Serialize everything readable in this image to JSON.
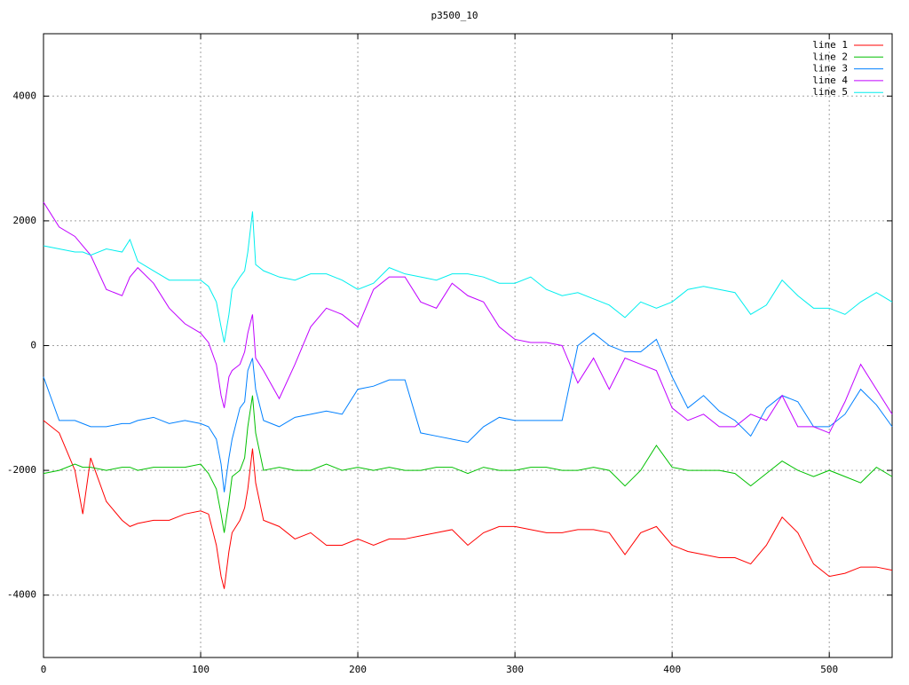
{
  "chart_data": {
    "type": "line",
    "title": "p3500_10",
    "x": [
      0,
      10,
      20,
      25,
      30,
      40,
      50,
      55,
      60,
      70,
      80,
      90,
      100,
      105,
      110,
      113,
      115,
      118,
      120,
      125,
      128,
      130,
      133,
      135,
      140,
      150,
      160,
      170,
      180,
      190,
      200,
      210,
      220,
      230,
      240,
      250,
      260,
      270,
      280,
      290,
      300,
      310,
      320,
      330,
      340,
      350,
      360,
      370,
      380,
      390,
      400,
      410,
      420,
      430,
      440,
      450,
      460,
      470,
      480,
      490,
      500,
      510,
      520,
      530,
      540
    ],
    "series": [
      {
        "name": "line 1",
        "color": "#ff0000",
        "values": [
          -1200,
          -1400,
          -2000,
          -2700,
          -1800,
          -2500,
          -2800,
          -2900,
          -2850,
          -2800,
          -2800,
          -2700,
          -2650,
          -2700,
          -3200,
          -3700,
          -3900,
          -3300,
          -3000,
          -2800,
          -2600,
          -2300,
          -1650,
          -2200,
          -2800,
          -2900,
          -3100,
          -3000,
          -3200,
          -3200,
          -3100,
          -3200,
          -3100,
          -3100,
          -3050,
          -3000,
          -2950,
          -3200,
          -3000,
          -2900,
          -2900,
          -2950,
          -3000,
          -3000,
          -2950,
          -2950,
          -3000,
          -3350,
          -3000,
          -2900,
          -3200,
          -3300,
          -3350,
          -3400,
          -3400,
          -3500,
          -3200,
          -2750,
          -3000,
          -3500,
          -3700,
          -3650,
          -3550,
          -3550,
          -3600
        ]
      },
      {
        "name": "line 2",
        "color": "#00c000",
        "values": [
          -2050,
          -2000,
          -1900,
          -1950,
          -1950,
          -2000,
          -1950,
          -1950,
          -2000,
          -1950,
          -1950,
          -1950,
          -1900,
          -2050,
          -2300,
          -2700,
          -3000,
          -2500,
          -2100,
          -2000,
          -1800,
          -1300,
          -800,
          -1400,
          -2000,
          -1950,
          -2000,
          -2000,
          -1900,
          -2000,
          -1950,
          -2000,
          -1950,
          -2000,
          -2000,
          -1950,
          -1950,
          -2050,
          -1950,
          -2000,
          -2000,
          -1950,
          -1950,
          -2000,
          -2000,
          -1950,
          -2000,
          -2250,
          -2000,
          -1600,
          -1950,
          -2000,
          -2000,
          -2000,
          -2050,
          -2250,
          -2050,
          -1850,
          -2000,
          -2100,
          -2000,
          -2100,
          -2200,
          -1950,
          -2100
        ]
      },
      {
        "name": "line 3",
        "color": "#0080ff",
        "values": [
          -500,
          -1200,
          -1200,
          -1250,
          -1300,
          -1300,
          -1250,
          -1250,
          -1200,
          -1150,
          -1250,
          -1200,
          -1250,
          -1300,
          -1500,
          -1900,
          -2350,
          -1800,
          -1500,
          -1000,
          -900,
          -400,
          -200,
          -700,
          -1200,
          -1300,
          -1150,
          -1100,
          -1050,
          -1100,
          -700,
          -650,
          -550,
          -550,
          -1400,
          -1450,
          -1500,
          -1550,
          -1300,
          -1150,
          -1200,
          -1200,
          -1200,
          -1200,
          0,
          200,
          0,
          -100,
          -100,
          100,
          -500,
          -1000,
          -800,
          -1050,
          -1200,
          -1450,
          -1000,
          -800,
          -900,
          -1300,
          -1300,
          -1100,
          -700,
          -950,
          -1300
        ]
      },
      {
        "name": "line 4",
        "color": "#c000ff",
        "values": [
          2300,
          1900,
          1750,
          1600,
          1450,
          900,
          800,
          1100,
          1250,
          1000,
          600,
          350,
          200,
          50,
          -300,
          -800,
          -1000,
          -500,
          -400,
          -300,
          -100,
          200,
          500,
          -200,
          -400,
          -850,
          -300,
          300,
          600,
          500,
          300,
          900,
          1100,
          1100,
          700,
          600,
          1000,
          800,
          700,
          300,
          100,
          50,
          50,
          0,
          -600,
          -200,
          -700,
          -200,
          -300,
          -400,
          -1000,
          -1200,
          -1100,
          -1300,
          -1300,
          -1100,
          -1200,
          -800,
          -1300,
          -1300,
          -1400,
          -900,
          -300,
          -700,
          -1100
        ]
      },
      {
        "name": "line 5",
        "color": "#00eeee",
        "values": [
          1600,
          1550,
          1500,
          1500,
          1450,
          1550,
          1500,
          1700,
          1350,
          1200,
          1050,
          1050,
          1050,
          950,
          700,
          300,
          50,
          500,
          900,
          1100,
          1200,
          1500,
          2150,
          1300,
          1200,
          1100,
          1050,
          1150,
          1150,
          1050,
          900,
          1000,
          1250,
          1150,
          1100,
          1050,
          1150,
          1150,
          1100,
          1000,
          1000,
          1100,
          900,
          800,
          850,
          750,
          650,
          450,
          700,
          600,
          700,
          900,
          950,
          900,
          850,
          500,
          650,
          1050,
          800,
          600,
          600,
          500,
          700,
          850,
          700
        ]
      }
    ],
    "xlim": [
      0,
      540
    ],
    "xticks": [
      0,
      100,
      200,
      300,
      400,
      500
    ],
    "ylim": [
      -5000,
      5000
    ],
    "yticks": [
      -4000,
      -2000,
      0,
      2000,
      4000
    ],
    "grid": true,
    "legend": "top-right"
  }
}
